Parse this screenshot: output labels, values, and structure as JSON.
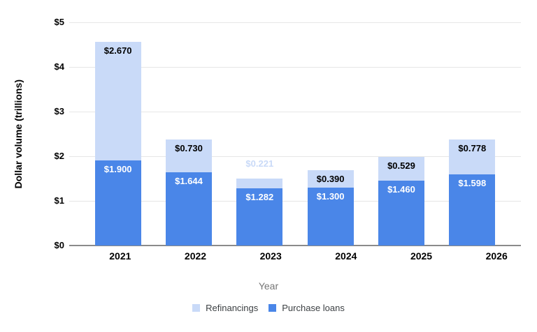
{
  "chart_data": {
    "type": "bar",
    "stacked": true,
    "orientation": "vertical",
    "xlabel": "Year",
    "ylabel": "Dollar volume (trillions)",
    "categories": [
      "2021",
      "2022",
      "2023",
      "2024",
      "2025",
      "2026"
    ],
    "series": [
      {
        "name": "Purchase loans",
        "color": "#4a86e8",
        "stack_order": "bottom",
        "values": [
          1.9,
          1.644,
          1.282,
          1.3,
          1.46,
          1.598
        ],
        "labels": [
          "$1.900",
          "$1.644",
          "$1.282",
          "$1.300",
          "$1.460",
          "$1.598"
        ]
      },
      {
        "name": "Refinancings",
        "color": "#c9daf8",
        "stack_order": "top",
        "values": [
          2.67,
          0.73,
          0.221,
          0.39,
          0.529,
          0.778
        ],
        "labels": [
          "$2.670",
          "$0.730",
          "$0.221",
          "$0.390",
          "$0.529",
          "$0.778"
        ]
      }
    ],
    "y_ticks": [
      "$0",
      "$1",
      "$2",
      "$3",
      "$4",
      "$5"
    ],
    "ylim": [
      0,
      5
    ],
    "grid": true,
    "gridline_color": "#e6e6e6",
    "axis_line_color": "#8a8a8a",
    "legend_position": "bottom"
  },
  "axes": {
    "x_title": "Year",
    "y_title": "Dollar volume (trillions)"
  },
  "legend": {
    "items": [
      {
        "label": "Refinancings",
        "color": "#c9daf8"
      },
      {
        "label": "Purchase loans",
        "color": "#4a86e8"
      }
    ]
  }
}
